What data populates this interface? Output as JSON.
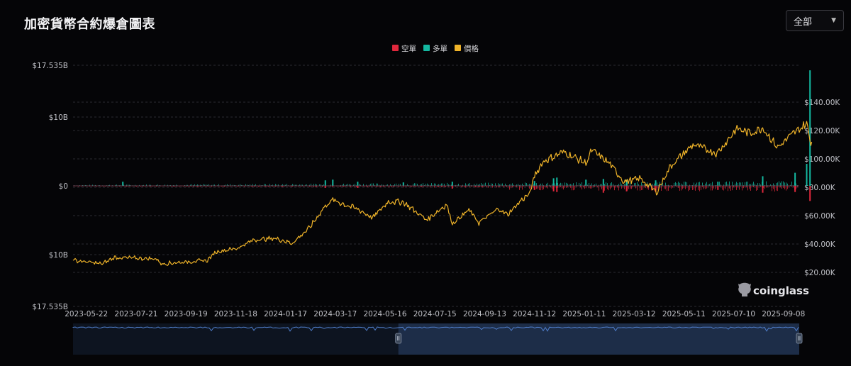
{
  "header": {
    "title": "加密貨幣合約爆倉圖表",
    "select": {
      "value": "全部"
    }
  },
  "watermark": {
    "text": "coinglass"
  },
  "colors": {
    "short": "#e0283c",
    "long": "#14b8a0",
    "price": "#f0b429",
    "grid": "#2a2a30",
    "navigator_fill": "#1d2d48",
    "navigator_line": "#4e7cc8"
  },
  "chart_data": {
    "type": "bar+line",
    "legend": [
      {
        "name": "空單",
        "color": "#e0283c"
      },
      {
        "name": "多單",
        "color": "#14b8a0"
      },
      {
        "name": "價格",
        "color": "#f0b429"
      }
    ],
    "legend_position": "top-center",
    "x_ticks": [
      "2023-05-22",
      "2023-07-21",
      "2023-09-19",
      "2023-11-18",
      "2024-01-17",
      "2024-03-17",
      "2024-05-16",
      "2024-07-15",
      "2024-09-13",
      "2024-11-12",
      "2025-01-11",
      "2025-03-12",
      "2025-05-11",
      "2025-07-10",
      "2025-09-08"
    ],
    "x_range": [
      "2023-05-06",
      "2025-09-27"
    ],
    "left_axis": {
      "ticks": [
        "$17.535B",
        "$10B",
        "$0",
        "$10B",
        "$17.535B"
      ],
      "tick_values": [
        17.535,
        10,
        0,
        -10,
        -17.535
      ],
      "unit": "B USD",
      "range": [
        -17.535,
        17.535
      ]
    },
    "right_axis": {
      "ticks": [
        "$140.00K",
        "$120.00K",
        "$100.00K",
        "$80.00K",
        "$60.00K",
        "$40.00K",
        "$20.00K"
      ],
      "tick_values": [
        140,
        120,
        100,
        80,
        60,
        40,
        20
      ],
      "unit": "K USD"
    },
    "grid": "horizontal dashed",
    "price_series": {
      "name": "價格",
      "dates": [
        "2023-05-06",
        "2023-06-10",
        "2023-06-25",
        "2023-08-15",
        "2023-08-20",
        "2023-10-15",
        "2023-10-25",
        "2023-11-20",
        "2023-12-10",
        "2024-01-05",
        "2024-01-25",
        "2024-02-15",
        "2024-03-05",
        "2024-03-14",
        "2024-04-15",
        "2024-05-01",
        "2024-05-20",
        "2024-06-07",
        "2024-07-05",
        "2024-07-29",
        "2024-08-05",
        "2024-08-25",
        "2024-09-06",
        "2024-09-30",
        "2024-10-10",
        "2024-10-29",
        "2024-11-06",
        "2024-11-12",
        "2024-11-22",
        "2024-12-17",
        "2025-01-13",
        "2025-01-20",
        "2025-02-10",
        "2025-02-28",
        "2025-03-20",
        "2025-04-08",
        "2025-04-25",
        "2025-05-22",
        "2025-06-20",
        "2025-07-14",
        "2025-07-30",
        "2025-08-14",
        "2025-09-01",
        "2025-09-18",
        "2025-10-06",
        "2025-10-10",
        "2025-10-12"
      ],
      "values": [
        28.5,
        26.0,
        30.5,
        29.5,
        26.0,
        28.5,
        34.5,
        37.0,
        43.0,
        44.0,
        40.5,
        51.5,
        67.0,
        71.0,
        64.0,
        58.5,
        70.0,
        69.5,
        57.0,
        68.0,
        54.5,
        64.0,
        55.0,
        65.0,
        60.5,
        72.0,
        75.0,
        88.0,
        98.0,
        105.0,
        97.0,
        106.0,
        97.0,
        84.0,
        86.0,
        76.5,
        95.0,
        110.0,
        104.0,
        121.5,
        118.0,
        122.0,
        108.0,
        117.0,
        125.0,
        113.0,
        112.0
      ]
    },
    "liquidation_series": [
      {
        "name": "多單",
        "dates": [
          "2023-07-05",
          "2024-03-05",
          "2024-03-14",
          "2024-04-13",
          "2024-06-07",
          "2024-08-05",
          "2024-11-12",
          "2024-12-05",
          "2024-12-09",
          "2025-01-13",
          "2025-02-03",
          "2025-03-03",
          "2025-04-07",
          "2025-06-21",
          "2025-08-14",
          "2025-09-22",
          "2025-10-06",
          "2025-10-10"
        ],
        "values": [
          0.6,
          0.8,
          0.9,
          0.6,
          0.5,
          0.6,
          0.7,
          1.1,
          1.2,
          0.9,
          1.0,
          0.9,
          0.8,
          0.6,
          1.4,
          1.9,
          3.2,
          16.8
        ]
      },
      {
        "name": "空單",
        "dates": [
          "2024-03-05",
          "2024-04-13",
          "2024-08-05",
          "2024-11-12",
          "2024-12-05",
          "2024-12-09",
          "2025-02-03",
          "2025-03-03",
          "2025-04-07",
          "2025-06-21",
          "2025-08-14",
          "2025-09-22",
          "2025-10-10"
        ],
        "values": [
          0.3,
          0.3,
          0.4,
          0.6,
          0.8,
          0.9,
          1.0,
          0.8,
          0.9,
          0.6,
          1.0,
          0.9,
          2.2
        ]
      }
    ],
    "navigator": {
      "selected_range": [
        "2024-06-01",
        "2025-10-12"
      ]
    }
  }
}
